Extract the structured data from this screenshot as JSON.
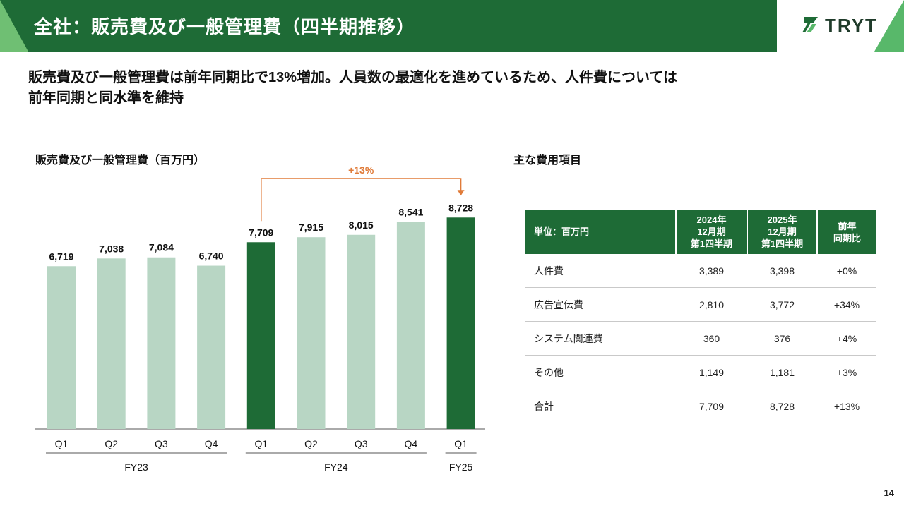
{
  "header": {
    "title": "全社：販売費及び一般管理費（四半期推移）",
    "logo_text": "TRYT"
  },
  "subtitle": {
    "line1": "販売費及び一般管理費は前年同期比で13%増加。人員数の最適化を進めているため、人件費については",
    "line2": "前年同期と同水準を維持"
  },
  "chart_section_title": "販売費及び一般管理費（百万円）",
  "table_section_title": "主な費用項目",
  "chart_data": {
    "type": "bar",
    "title": "販売費及び一般管理費（百万円）",
    "categories": [
      "Q1",
      "Q2",
      "Q3",
      "Q4",
      "Q1",
      "Q2",
      "Q3",
      "Q4",
      "Q1"
    ],
    "values": [
      6719,
      7038,
      7084,
      6740,
      7709,
      7915,
      8015,
      8541,
      8728
    ],
    "value_labels": [
      "6,719",
      "7,038",
      "7,084",
      "6,740",
      "7,709",
      "7,915",
      "8,015",
      "8,541",
      "8,728"
    ],
    "highlighted": [
      false,
      false,
      false,
      false,
      true,
      false,
      false,
      false,
      true
    ],
    "groups": [
      {
        "label": "FY23",
        "start": 0,
        "end": 3
      },
      {
        "label": "FY24",
        "start": 4,
        "end": 7
      },
      {
        "label": "FY25",
        "start": 8,
        "end": 8
      }
    ],
    "annotation": {
      "text": "+13%",
      "from": 4,
      "to": 8
    },
    "colors": {
      "highlight": "#1e6b36",
      "normal": "#b8d6c4",
      "annotation": "#e07b39"
    }
  },
  "table": {
    "headers": [
      "単位：百万円",
      "2024年\n12月期\n第1四半期",
      "2025年\n12月期\n第1四半期",
      "前年\n同期比"
    ],
    "rows": [
      [
        "人件費",
        "3,389",
        "3,398",
        "+0%"
      ],
      [
        "広告宣伝費",
        "2,810",
        "3,772",
        "+34%"
      ],
      [
        "システム関連費",
        "360",
        "376",
        "+4%"
      ],
      [
        "その他",
        "1,149",
        "1,181",
        "+3%"
      ],
      [
        "合計",
        "7,709",
        "8,728",
        "+13%"
      ]
    ]
  },
  "page_number": "14",
  "colors": {
    "brand_green": "#1e6b36",
    "light_green": "#b8d6c4",
    "accent_orange": "#e07b39"
  }
}
